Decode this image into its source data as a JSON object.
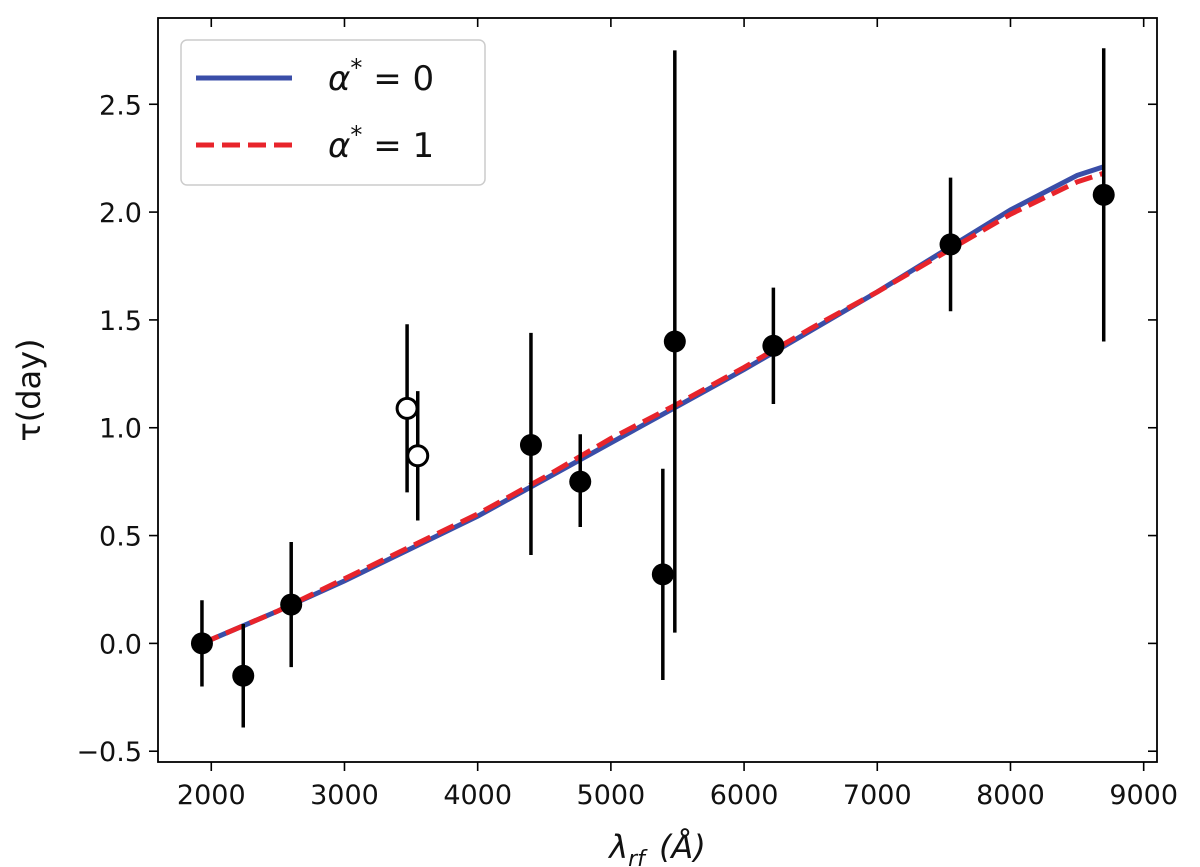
{
  "chart_data": {
    "type": "scatter",
    "xlabel": "λ",
    "xlabel_sub": "rf",
    "xlabel_unit": "(Å)",
    "ylabel": "τ(day)",
    "xlim": [
      1600,
      9100
    ],
    "ylim": [
      -0.55,
      2.9
    ],
    "x_ticks": [
      2000,
      3000,
      4000,
      5000,
      6000,
      7000,
      8000,
      9000
    ],
    "x_tick_labels": [
      "2000",
      "3000",
      "4000",
      "5000",
      "6000",
      "7000",
      "8000",
      "9000"
    ],
    "y_ticks": [
      -0.5,
      0.0,
      0.5,
      1.0,
      1.5,
      2.0,
      2.5
    ],
    "y_tick_labels": [
      "−0.5",
      "0.0",
      "0.5",
      "1.0",
      "1.5",
      "2.0",
      "2.5"
    ],
    "grid": false,
    "legend_position": "top-left",
    "series": [
      {
        "name": "α* = 0",
        "legend_main": "α",
        "legend_sup": "*",
        "legend_rest": " = 0",
        "kind": "line",
        "style": "solid",
        "color": "#3a4ea8",
        "x": [
          1930,
          2500,
          3000,
          3500,
          4000,
          4500,
          5000,
          5500,
          6000,
          6500,
          7000,
          7500,
          8000,
          8500,
          8700
        ],
        "y": [
          0.0,
          0.15,
          0.29,
          0.44,
          0.59,
          0.76,
          0.93,
          1.1,
          1.27,
          1.45,
          1.63,
          1.82,
          2.01,
          2.17,
          2.21
        ]
      },
      {
        "name": "α* = 1",
        "legend_main": "α",
        "legend_sup": "*",
        "legend_rest": " = 1",
        "kind": "line",
        "style": "dashed",
        "color": "#e8242b",
        "x": [
          1930,
          2500,
          3000,
          3500,
          4000,
          4500,
          5000,
          5500,
          6000,
          6500,
          7000,
          7500,
          8000,
          8500,
          8700
        ],
        "y": [
          0.0,
          0.15,
          0.3,
          0.45,
          0.6,
          0.77,
          0.95,
          1.11,
          1.28,
          1.46,
          1.63,
          1.81,
          1.99,
          2.14,
          2.18
        ]
      },
      {
        "kind": "points",
        "marker": "filled",
        "color": "#000000",
        "x": [
          1930,
          2240,
          2600,
          4400,
          4770,
          5390,
          5480,
          6220,
          7550,
          8700
        ],
        "y": [
          0.0,
          -0.15,
          0.18,
          0.92,
          0.75,
          0.32,
          1.4,
          1.38,
          1.85,
          2.08
        ],
        "y_lower": [
          -0.2,
          -0.39,
          -0.11,
          0.41,
          0.54,
          -0.17,
          0.05,
          1.11,
          1.54,
          1.4
        ],
        "y_upper": [
          0.2,
          0.09,
          0.47,
          1.44,
          0.97,
          0.81,
          2.75,
          1.65,
          2.16,
          2.76
        ]
      },
      {
        "kind": "points",
        "marker": "open",
        "color": "#000000",
        "x": [
          3470,
          3550
        ],
        "y": [
          1.09,
          0.87
        ],
        "y_lower": [
          0.7,
          0.57
        ],
        "y_upper": [
          1.48,
          1.17
        ]
      }
    ]
  }
}
